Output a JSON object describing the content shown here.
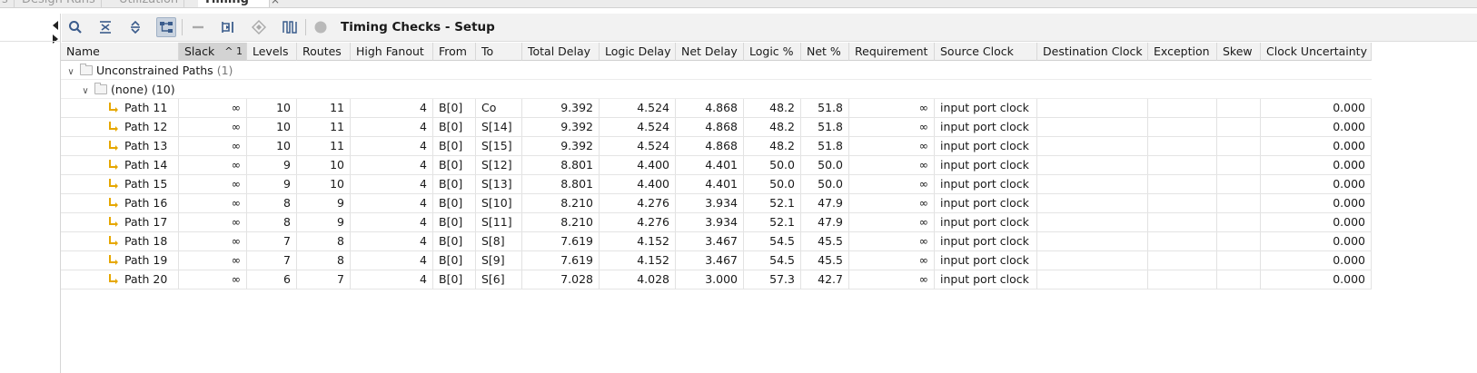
{
  "tabs": [
    {
      "label": "s",
      "left": 0
    },
    {
      "label": "Design Runs",
      "left": 18
    },
    {
      "label": "Utilization",
      "left": 125
    },
    {
      "label": "Timing",
      "left": 218,
      "active": true
    }
  ],
  "tab_close": "×",
  "toolbar": {
    "title": "Timing Checks - Setup"
  },
  "columns": [
    {
      "label": "Name",
      "w": 130
    },
    {
      "label": "Slack",
      "w": 75,
      "sorted": true,
      "sort_indicator": "^ 1"
    },
    {
      "label": "Levels",
      "w": 55
    },
    {
      "label": "Routes",
      "w": 59
    },
    {
      "label": "High Fanout",
      "w": 91
    },
    {
      "label": "From",
      "w": 47
    },
    {
      "label": "To",
      "w": 51
    },
    {
      "label": "Total Delay",
      "w": 85
    },
    {
      "label": "Logic Delay",
      "w": 84
    },
    {
      "label": "Net Delay",
      "w": 75
    },
    {
      "label": "Logic %",
      "w": 63
    },
    {
      "label": "Net %",
      "w": 53
    },
    {
      "label": "Requirement",
      "w": 94
    },
    {
      "label": "Source Clock",
      "w": 113
    },
    {
      "label": "Destination Clock",
      "w": 122
    },
    {
      "label": "Exception",
      "w": 76
    },
    {
      "label": "Skew",
      "w": 48
    },
    {
      "label": "Clock Uncertainty",
      "w": 122
    }
  ],
  "groups": {
    "unconstrained": {
      "label": "Unconstrained Paths",
      "count": "(1)"
    },
    "none": {
      "label": "(none)",
      "count": "(10)"
    }
  },
  "rows": [
    {
      "name": "Path 11",
      "slack": "∞",
      "levels": "10",
      "routes": "11",
      "fanout": "4",
      "from": "B[0]",
      "to": "Co",
      "total": "9.392",
      "logic": "4.524",
      "net": "4.868",
      "logic_pct": "48.2",
      "net_pct": "51.8",
      "req": "∞",
      "src": "input port clock",
      "dst": "",
      "exc": "",
      "skew": "",
      "unc": "0.000"
    },
    {
      "name": "Path 12",
      "slack": "∞",
      "levels": "10",
      "routes": "11",
      "fanout": "4",
      "from": "B[0]",
      "to": "S[14]",
      "total": "9.392",
      "logic": "4.524",
      "net": "4.868",
      "logic_pct": "48.2",
      "net_pct": "51.8",
      "req": "∞",
      "src": "input port clock",
      "dst": "",
      "exc": "",
      "skew": "",
      "unc": "0.000"
    },
    {
      "name": "Path 13",
      "slack": "∞",
      "levels": "10",
      "routes": "11",
      "fanout": "4",
      "from": "B[0]",
      "to": "S[15]",
      "total": "9.392",
      "logic": "4.524",
      "net": "4.868",
      "logic_pct": "48.2",
      "net_pct": "51.8",
      "req": "∞",
      "src": "input port clock",
      "dst": "",
      "exc": "",
      "skew": "",
      "unc": "0.000"
    },
    {
      "name": "Path 14",
      "slack": "∞",
      "levels": "9",
      "routes": "10",
      "fanout": "4",
      "from": "B[0]",
      "to": "S[12]",
      "total": "8.801",
      "logic": "4.400",
      "net": "4.401",
      "logic_pct": "50.0",
      "net_pct": "50.0",
      "req": "∞",
      "src": "input port clock",
      "dst": "",
      "exc": "",
      "skew": "",
      "unc": "0.000"
    },
    {
      "name": "Path 15",
      "slack": "∞",
      "levels": "9",
      "routes": "10",
      "fanout": "4",
      "from": "B[0]",
      "to": "S[13]",
      "total": "8.801",
      "logic": "4.400",
      "net": "4.401",
      "logic_pct": "50.0",
      "net_pct": "50.0",
      "req": "∞",
      "src": "input port clock",
      "dst": "",
      "exc": "",
      "skew": "",
      "unc": "0.000"
    },
    {
      "name": "Path 16",
      "slack": "∞",
      "levels": "8",
      "routes": "9",
      "fanout": "4",
      "from": "B[0]",
      "to": "S[10]",
      "total": "8.210",
      "logic": "4.276",
      "net": "3.934",
      "logic_pct": "52.1",
      "net_pct": "47.9",
      "req": "∞",
      "src": "input port clock",
      "dst": "",
      "exc": "",
      "skew": "",
      "unc": "0.000"
    },
    {
      "name": "Path 17",
      "slack": "∞",
      "levels": "8",
      "routes": "9",
      "fanout": "4",
      "from": "B[0]",
      "to": "S[11]",
      "total": "8.210",
      "logic": "4.276",
      "net": "3.934",
      "logic_pct": "52.1",
      "net_pct": "47.9",
      "req": "∞",
      "src": "input port clock",
      "dst": "",
      "exc": "",
      "skew": "",
      "unc": "0.000"
    },
    {
      "name": "Path 18",
      "slack": "∞",
      "levels": "7",
      "routes": "8",
      "fanout": "4",
      "from": "B[0]",
      "to": "S[8]",
      "total": "7.619",
      "logic": "4.152",
      "net": "3.467",
      "logic_pct": "54.5",
      "net_pct": "45.5",
      "req": "∞",
      "src": "input port clock",
      "dst": "",
      "exc": "",
      "skew": "",
      "unc": "0.000"
    },
    {
      "name": "Path 19",
      "slack": "∞",
      "levels": "7",
      "routes": "8",
      "fanout": "4",
      "from": "B[0]",
      "to": "S[9]",
      "total": "7.619",
      "logic": "4.152",
      "net": "3.467",
      "logic_pct": "54.5",
      "net_pct": "45.5",
      "req": "∞",
      "src": "input port clock",
      "dst": "",
      "exc": "",
      "skew": "",
      "unc": "0.000"
    },
    {
      "name": "Path 20",
      "slack": "∞",
      "levels": "6",
      "routes": "7",
      "fanout": "4",
      "from": "B[0]",
      "to": "S[6]",
      "total": "7.028",
      "logic": "4.028",
      "net": "3.000",
      "logic_pct": "57.3",
      "net_pct": "42.7",
      "req": "∞",
      "src": "input port clock",
      "dst": "",
      "exc": "",
      "skew": "",
      "unc": "0.000"
    }
  ],
  "colors": {
    "accent": "#e6a700",
    "pressed": "#c9d3df"
  }
}
